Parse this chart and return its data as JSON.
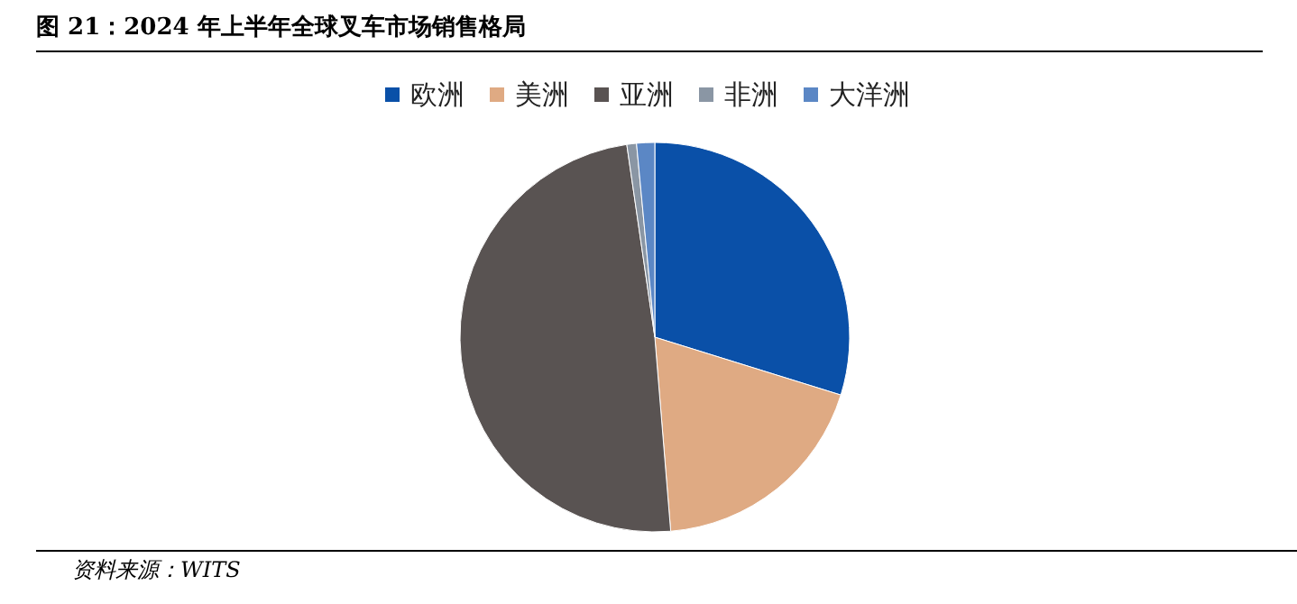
{
  "chart_data": {
    "type": "pie",
    "title": "图 21：2024 年上半年全球叉车市场销售格局",
    "categories": [
      "欧洲",
      "美洲",
      "亚洲",
      "非洲",
      "大洋洲"
    ],
    "values": [
      29.8,
      18.9,
      49.0,
      0.8,
      1.5
    ],
    "colors": [
      "#0a50a8",
      "#dfaa83",
      "#595352",
      "#8a96a4",
      "#5b87c5"
    ],
    "legend": "top",
    "annotations": [
      "资料来源：WITS"
    ]
  }
}
